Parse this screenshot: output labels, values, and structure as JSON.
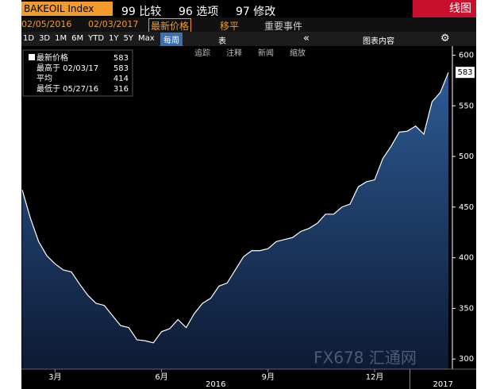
{
  "toolbar": {
    "ticker": "BAKEOIL Index",
    "menus": [
      "99 比较",
      "96 选项",
      "97 修改"
    ],
    "view": "线图",
    "start_date": "02/05/2016",
    "end_date": "02/03/2017",
    "field": "最新价格",
    "moving_avg": "移平",
    "events": "重要事件",
    "ranges": [
      "1D",
      "3D",
      "1M",
      "6M",
      "YTD",
      "1Y",
      "5Y",
      "Max"
    ],
    "period": "每周",
    "table": "表",
    "chart_content": "图表内容",
    "tools": [
      "追踪",
      "注释",
      "新闻",
      "缩放"
    ]
  },
  "chart_data": {
    "type": "area",
    "categories": [
      null,
      null,
      null,
      null,
      "3月",
      null,
      null,
      null,
      null,
      null,
      null,
      null,
      null,
      null,
      null,
      null,
      null,
      "6月",
      null,
      null,
      null,
      null,
      null,
      null,
      null,
      null,
      null,
      null,
      null,
      null,
      "9月",
      null,
      null,
      null,
      null,
      null,
      null,
      null,
      null,
      null,
      null,
      null,
      null,
      "12月",
      null,
      null,
      null,
      null,
      null,
      null,
      null,
      null,
      null
    ],
    "year_labels": [
      "2016",
      "2017"
    ],
    "series": [
      {
        "name": "最新价格",
        "color": "#ffffff",
        "values": [
          467,
          439,
          416,
          402,
          394,
          388,
          386,
          374,
          363,
          355,
          353,
          343,
          333,
          331,
          319,
          318,
          316,
          327,
          330,
          339,
          331,
          345,
          355,
          360,
          372,
          375,
          388,
          401,
          407,
          407,
          409,
          416,
          418,
          420,
          426,
          429,
          434,
          443,
          443,
          450,
          453,
          470,
          475,
          477,
          498,
          510,
          524,
          525,
          530,
          522,
          554,
          563,
          583
        ]
      }
    ],
    "legend_stats": [
      {
        "label": "最新价格",
        "value": 583
      },
      {
        "label": "最高于 02/03/17",
        "value": 583
      },
      {
        "label": "平均",
        "value": 414
      },
      {
        "label": "最低于 05/27/16",
        "value": 316
      }
    ],
    "ylim": [
      290,
      609
    ],
    "yticks": [
      300,
      350,
      400,
      450,
      500,
      550,
      600
    ],
    "watermark": "FX678 汇通网"
  }
}
